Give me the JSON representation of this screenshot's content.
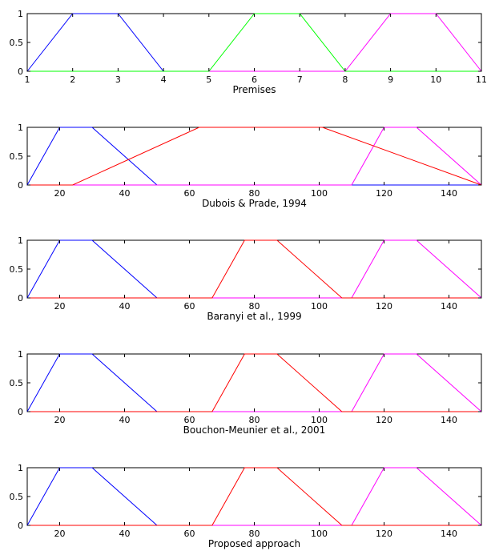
{
  "chart_data": [
    {
      "type": "line",
      "xlabel": "Premises",
      "xlim": [
        1,
        11
      ],
      "ylim": [
        0,
        1
      ],
      "xticks": [
        1,
        2,
        3,
        4,
        5,
        6,
        7,
        8,
        9,
        10,
        11
      ],
      "yticks": [
        0,
        0.5,
        1
      ],
      "xtick_labels": [
        "1",
        "2",
        "3",
        "4",
        "5",
        "6",
        "7",
        "8",
        "9",
        "10",
        "11"
      ],
      "ytick_labels": [
        "0",
        "0.5",
        "1"
      ],
      "series": [
        {
          "color": "#0000ff",
          "x": [
            1,
            2,
            3,
            4,
            11
          ],
          "y": [
            0,
            1,
            1,
            0,
            0
          ]
        },
        {
          "color": "#ff00ff",
          "x": [
            1,
            8,
            9,
            10,
            11
          ],
          "y": [
            0,
            0,
            1,
            1,
            0
          ]
        },
        {
          "color": "#00ff00",
          "x": [
            1,
            5,
            6,
            7,
            8,
            11
          ],
          "y": [
            0,
            0,
            1,
            1,
            0,
            0
          ]
        }
      ]
    },
    {
      "type": "line",
      "xlabel": "Dubois & Prade, 1994",
      "xlim": [
        10,
        150
      ],
      "ylim": [
        0,
        1
      ],
      "xticks": [
        20,
        40,
        60,
        80,
        100,
        120,
        140
      ],
      "yticks": [
        0,
        0.5,
        1
      ],
      "xtick_labels": [
        "20",
        "40",
        "60",
        "80",
        "100",
        "120",
        "140"
      ],
      "ytick_labels": [
        "0",
        "0.5",
        "1"
      ],
      "series": [
        {
          "color": "#0000ff",
          "x": [
            10,
            20,
            30,
            50,
            150
          ],
          "y": [
            0,
            1,
            1,
            0,
            0
          ]
        },
        {
          "color": "#ff00ff",
          "x": [
            10,
            110,
            120,
            130,
            150
          ],
          "y": [
            0,
            0,
            1,
            1,
            0
          ]
        },
        {
          "color": "#ff0000",
          "x": [
            10,
            24,
            63,
            101,
            150
          ],
          "y": [
            0,
            0,
            1,
            1,
            0
          ]
        }
      ]
    },
    {
      "type": "line",
      "xlabel": "Baranyi et al., 1999",
      "xlim": [
        10,
        150
      ],
      "ylim": [
        0,
        1
      ],
      "xticks": [
        20,
        40,
        60,
        80,
        100,
        120,
        140
      ],
      "yticks": [
        0,
        0.5,
        1
      ],
      "xtick_labels": [
        "20",
        "40",
        "60",
        "80",
        "100",
        "120",
        "140"
      ],
      "ytick_labels": [
        "0",
        "0.5",
        "1"
      ],
      "series": [
        {
          "color": "#0000ff",
          "x": [
            10,
            20,
            30,
            50,
            150
          ],
          "y": [
            0,
            1,
            1,
            0,
            0
          ]
        },
        {
          "color": "#ff00ff",
          "x": [
            10,
            110,
            120,
            130,
            150
          ],
          "y": [
            0,
            0,
            1,
            1,
            0
          ]
        },
        {
          "color": "#ff0000",
          "x": [
            10,
            67,
            77,
            87,
            107,
            150
          ],
          "y": [
            0,
            0,
            1,
            1,
            0,
            0
          ]
        }
      ]
    },
    {
      "type": "line",
      "xlabel": "Bouchon-Meunier et al., 2001",
      "xlim": [
        10,
        150
      ],
      "ylim": [
        0,
        1
      ],
      "xticks": [
        20,
        40,
        60,
        80,
        100,
        120,
        140
      ],
      "yticks": [
        0,
        0.5,
        1
      ],
      "xtick_labels": [
        "20",
        "40",
        "60",
        "80",
        "100",
        "120",
        "140"
      ],
      "ytick_labels": [
        "0",
        "0.5",
        "1"
      ],
      "series": [
        {
          "color": "#0000ff",
          "x": [
            10,
            20,
            30,
            50,
            150
          ],
          "y": [
            0,
            1,
            1,
            0,
            0
          ]
        },
        {
          "color": "#ff00ff",
          "x": [
            10,
            110,
            120,
            130,
            150
          ],
          "y": [
            0,
            0,
            1,
            1,
            0
          ]
        },
        {
          "color": "#ff0000",
          "x": [
            10,
            67,
            77,
            87,
            107,
            150
          ],
          "y": [
            0,
            0,
            1,
            1,
            0,
            0
          ]
        }
      ]
    },
    {
      "type": "line",
      "xlabel": "Proposed approach",
      "xlim": [
        10,
        150
      ],
      "ylim": [
        0,
        1
      ],
      "xticks": [
        20,
        40,
        60,
        80,
        100,
        120,
        140
      ],
      "yticks": [
        0,
        0.5,
        1
      ],
      "xtick_labels": [
        "20",
        "40",
        "60",
        "80",
        "100",
        "120",
        "140"
      ],
      "ytick_labels": [
        "0",
        "0.5",
        "1"
      ],
      "series": [
        {
          "color": "#0000ff",
          "x": [
            10,
            20,
            30,
            50,
            150
          ],
          "y": [
            0,
            1,
            1,
            0,
            0
          ]
        },
        {
          "color": "#ff00ff",
          "x": [
            10,
            110,
            120,
            130,
            150
          ],
          "y": [
            0,
            0,
            1,
            1,
            0
          ]
        },
        {
          "color": "#ff0000",
          "x": [
            10,
            67,
            77,
            87,
            107,
            150
          ],
          "y": [
            0,
            0,
            1,
            1,
            0,
            0
          ]
        }
      ]
    }
  ]
}
